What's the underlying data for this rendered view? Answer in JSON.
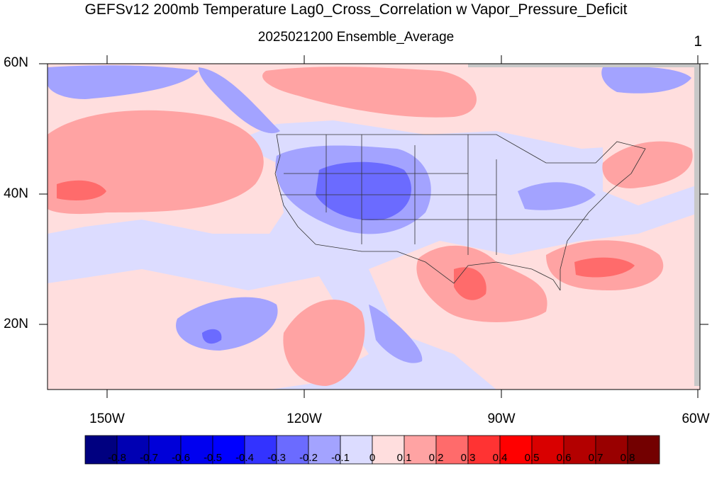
{
  "title": "GEFSv12 200mb Temperature Lag0_Cross_Correlation w Vapor_Pressure_Deficit",
  "subtitle": "2025021200 Ensemble_Average",
  "frame_number": "1",
  "map": {
    "lon_labels": [
      "150W",
      "120W",
      "90W",
      "60W"
    ],
    "lat_labels": [
      "60N",
      "40N",
      "20N"
    ],
    "lon_range": [
      -160,
      -60
    ],
    "lat_range": [
      10,
      60
    ]
  },
  "colorbar": {
    "labels": [
      "-0.8",
      "-0.7",
      "-0.6",
      "-0.5",
      "-0.4",
      "-0.3",
      "-0.2",
      "-0.1",
      "0",
      "0.1",
      "0.2",
      "0.3",
      "0.4",
      "0.5",
      "0.6",
      "0.7",
      "0.8"
    ],
    "colors": [
      "#000080",
      "#0000b3",
      "#0000d9",
      "#0000f0",
      "#0000ff",
      "#3333ff",
      "#6b6bff",
      "#a3a3ff",
      "#dcdcff",
      "#ffdede",
      "#ffa3a3",
      "#ff6b6b",
      "#ff3333",
      "#ff0000",
      "#d90000",
      "#b30000",
      "#990000",
      "#730000"
    ]
  },
  "colors": {
    "neutral_neg": "#dcdcff",
    "neutral_pos": "#ffdede",
    "weak_neg": "#a3a3ff",
    "weak_pos": "#ffa3a3",
    "mid_neg": "#6b6bff",
    "mid_pos": "#ff6b6b",
    "missing": "#c8c8c8"
  }
}
